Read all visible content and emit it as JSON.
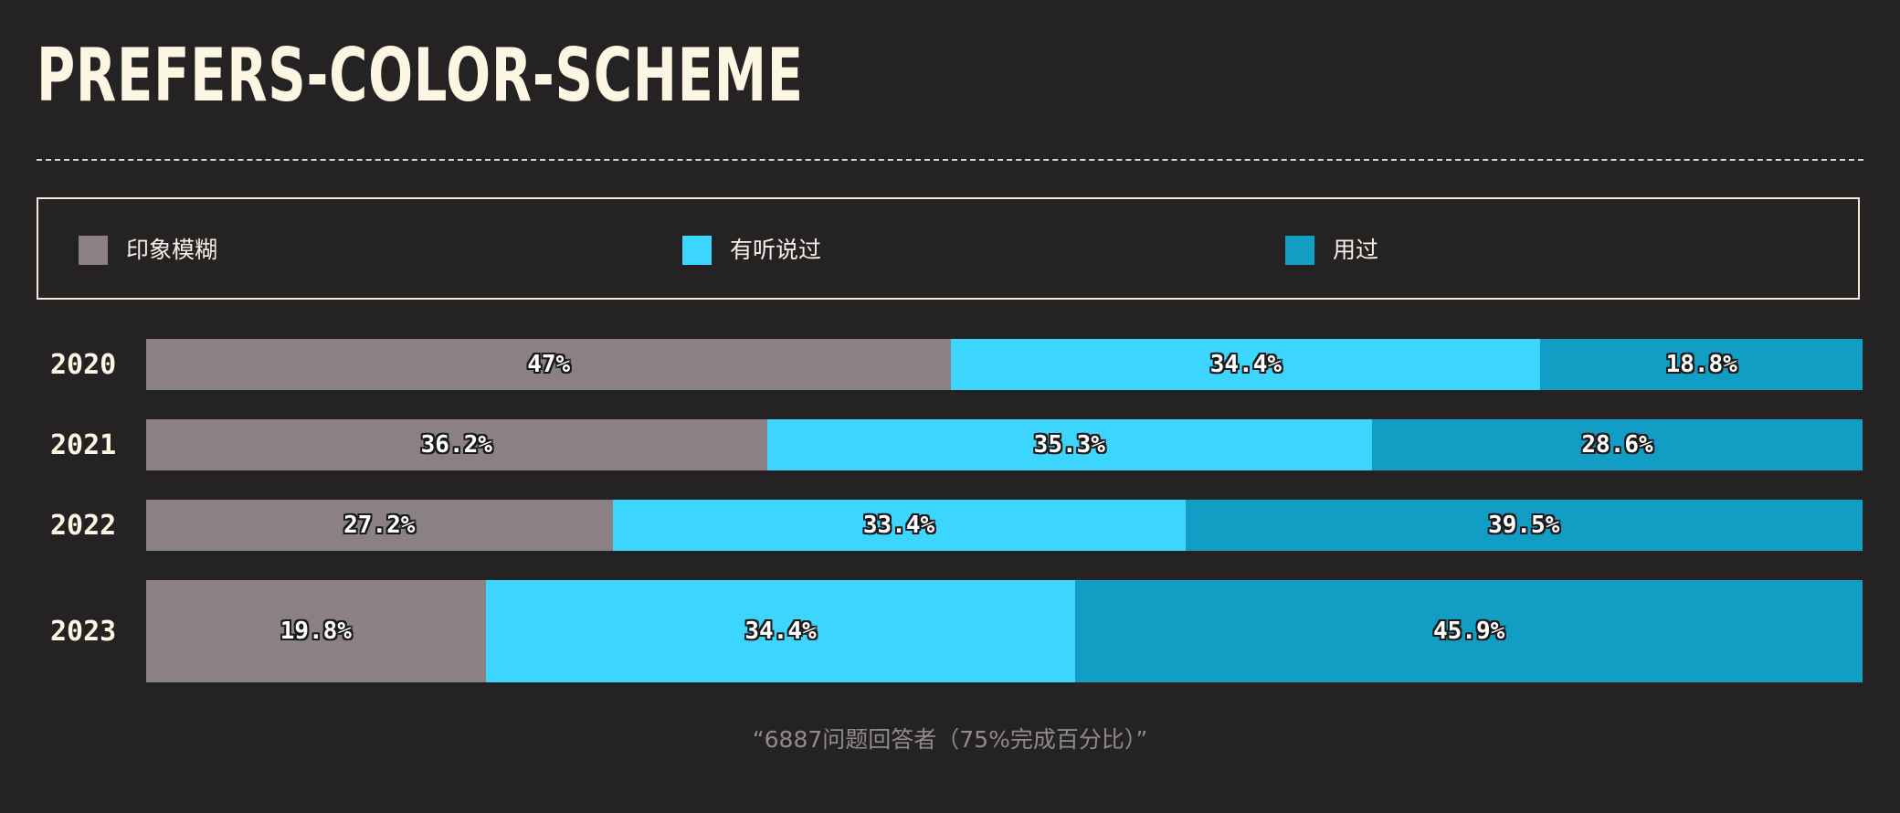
{
  "title": "PREFERS-COLOR-SCHEME",
  "colors": {
    "background": "#252223",
    "vague": "#8b8083",
    "heard": "#3bd5fd",
    "used": "#129dc4"
  },
  "legend": [
    {
      "label": "印象模糊",
      "color": "#8b8083"
    },
    {
      "label": "有听说过",
      "color": "#3bd5fd"
    },
    {
      "label": "用过",
      "color": "#129dc4"
    }
  ],
  "chart_data": {
    "type": "bar",
    "stacked": true,
    "orientation": "horizontal",
    "normalized_to": 100,
    "categories": [
      "2020",
      "2021",
      "2022",
      "2023"
    ],
    "series": [
      {
        "name": "印象模糊",
        "values": [
          47,
          36.2,
          27.2,
          19.8
        ],
        "labels": [
          "47%",
          "36.2%",
          "27.2%",
          "19.8%"
        ]
      },
      {
        "name": "有听说过",
        "values": [
          34.4,
          35.3,
          33.4,
          34.4
        ],
        "labels": [
          "34.4%",
          "35.3%",
          "33.4%",
          "34.4%"
        ]
      },
      {
        "name": "用过",
        "values": [
          18.8,
          28.6,
          39.5,
          45.9
        ],
        "labels": [
          "18.8%",
          "28.6%",
          "39.5%",
          "45.9%"
        ]
      }
    ],
    "legend_position": "top",
    "grid": false
  },
  "footnote": "“6887问题回答者（75%完成百分比）”"
}
